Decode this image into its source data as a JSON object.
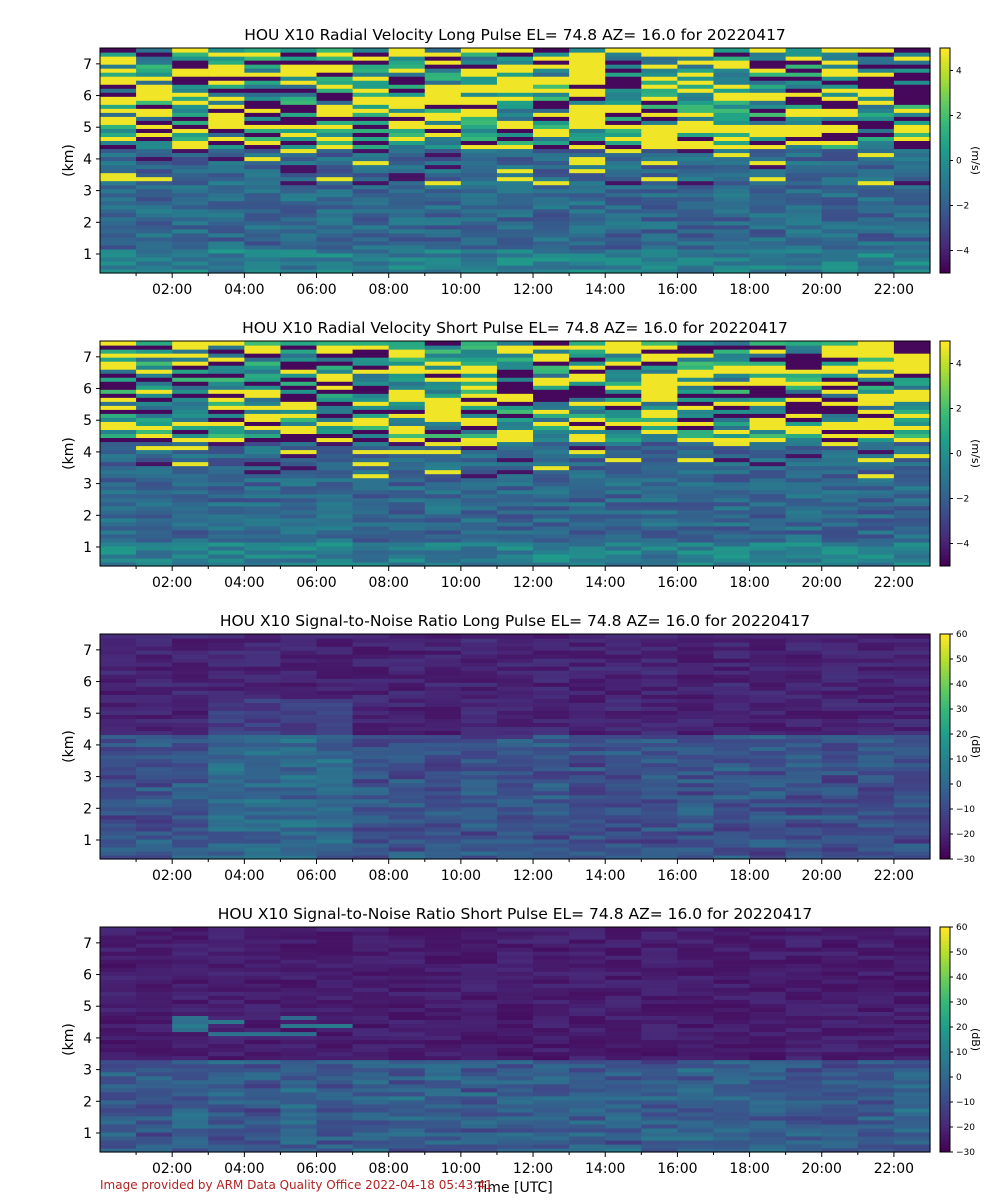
{
  "figure": {
    "xlabel": "Time [UTC]",
    "credit": "Image provided by ARM Data Quality Office 2022-04-18 05:43:41"
  },
  "chart_data": [
    {
      "type": "heatmap",
      "title": "HOU X10 Radial Velocity Long Pulse EL= 74.8 AZ= 16.0 for 20220417",
      "ylabel": "(km)",
      "colorbar_label": "(m/s)",
      "colormap": "viridis",
      "clim": [
        -5,
        5
      ],
      "colorbar_ticks": [
        "4",
        "2",
        "0",
        "−2",
        "−4"
      ],
      "ylim": [
        0.4,
        7.5
      ],
      "yticks": [
        "1",
        "2",
        "3",
        "4",
        "5",
        "6",
        "7"
      ],
      "xlim": [
        "00:00",
        "23:00"
      ],
      "xticks": [
        "02:00",
        "04:00",
        "06:00",
        "08:00",
        "10:00",
        "12:00",
        "14:00",
        "16:00",
        "18:00",
        "20:00",
        "22:00"
      ],
      "pattern": "folded"
    },
    {
      "type": "heatmap",
      "title": "HOU X10 Radial Velocity Short Pulse EL= 74.8 AZ= 16.0 for 20220417",
      "ylabel": "(km)",
      "colorbar_label": "(m/s)",
      "colormap": "viridis",
      "clim": [
        -5,
        5
      ],
      "colorbar_ticks": [
        "4",
        "2",
        "0",
        "−2",
        "−4"
      ],
      "ylim": [
        0.4,
        7.5
      ],
      "yticks": [
        "1",
        "2",
        "3",
        "4",
        "5",
        "6",
        "7"
      ],
      "xlim": [
        "00:00",
        "23:00"
      ],
      "xticks": [
        "02:00",
        "04:00",
        "06:00",
        "08:00",
        "10:00",
        "12:00",
        "14:00",
        "16:00",
        "18:00",
        "20:00",
        "22:00"
      ],
      "pattern": "folded"
    },
    {
      "type": "heatmap",
      "title": "HOU X10 Signal-to-Noise Ratio Long Pulse EL= 74.8 AZ= 16.0 for 20220417",
      "ylabel": "(km)",
      "colorbar_label": "(dB)",
      "colormap": "viridis",
      "clim": [
        -30,
        60
      ],
      "colorbar_ticks": [
        "60",
        "50",
        "40",
        "30",
        "20",
        "10",
        "0",
        "−10",
        "−20",
        "−30"
      ],
      "ylim": [
        0.4,
        7.5
      ],
      "yticks": [
        "1",
        "2",
        "3",
        "4",
        "5",
        "6",
        "7"
      ],
      "xlim": [
        "00:00",
        "23:00"
      ],
      "xticks": [
        "02:00",
        "04:00",
        "06:00",
        "08:00",
        "10:00",
        "12:00",
        "14:00",
        "16:00",
        "18:00",
        "20:00",
        "22:00"
      ],
      "pattern": "snr"
    },
    {
      "type": "heatmap",
      "title": "HOU X10 Signal-to-Noise Ratio Short Pulse EL= 74.8 AZ= 16.0 for 20220417",
      "ylabel": "(km)",
      "colorbar_label": "(dB)",
      "colormap": "viridis",
      "clim": [
        -30,
        60
      ],
      "colorbar_ticks": [
        "60",
        "50",
        "40",
        "30",
        "20",
        "10",
        "0",
        "−10",
        "−20",
        "−30"
      ],
      "ylim": [
        0.4,
        7.5
      ],
      "yticks": [
        "1",
        "2",
        "3",
        "4",
        "5",
        "6",
        "7"
      ],
      "xlim": [
        "00:00",
        "23:00"
      ],
      "xticks": [
        "02:00",
        "04:00",
        "06:00",
        "08:00",
        "10:00",
        "12:00",
        "14:00",
        "16:00",
        "18:00",
        "20:00",
        "22:00"
      ],
      "pattern": "snr_short"
    }
  ]
}
